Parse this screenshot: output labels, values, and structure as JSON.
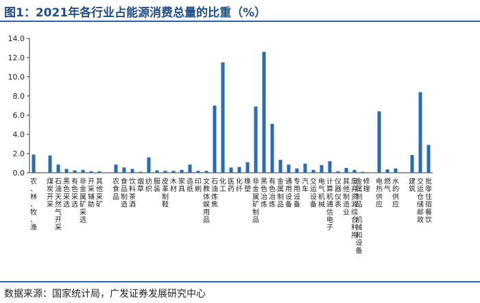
{
  "header": {
    "title": "图1：2021年各行业占能源消费总量的比重（%）"
  },
  "footer": {
    "source": "数据来源：国家统计局，广发证券发展研究中心"
  },
  "colors": {
    "bar": "#2b6cb0",
    "accent": "#2b63a8",
    "title": "#1f4e8c"
  },
  "chart_data": {
    "type": "bar",
    "title": "2021年各行业占能源消费总量的比重（%）",
    "xlabel": "",
    "ylabel": "",
    "ylim": [
      0,
      14
    ],
    "yticks": [
      "0.0",
      "2.0",
      "4.0",
      "6.0",
      "8.0",
      "10.0",
      "12.0",
      "14.0"
    ],
    "grid": false,
    "legend": "none",
    "categories": [
      "农、林、牧、渔",
      "",
      "煤炭开采",
      "石油天然气开采",
      "黑色采选",
      "有色采选",
      "非金属矿采选",
      "开采辅助",
      "其他采矿",
      "",
      "农食品",
      "食品制造",
      "饮料茶酒",
      "烟草",
      "纺织",
      "服装",
      "皮革制鞋",
      "木材",
      "家具",
      "造纸",
      "印刷",
      "文教体娱用品",
      "石油炼焦",
      "化工",
      "医药",
      "化纤",
      "橡塑",
      "非金属矿制品",
      "黑色冶炼",
      "有色冶炼",
      "金属制品",
      "通用设备",
      "专用设备",
      "汽车",
      "交运设备",
      "电气机械",
      "计算机通信电子",
      "仪器仪表",
      "其他制造业",
      "废弃资源综合利用",
      "金属制品、机械和设备修理",
      "",
      "电热供应",
      "燃气",
      "水的供应",
      "",
      "建筑",
      "交运仓储邮政",
      "批零住宿餐饮"
    ],
    "values": [
      1.9,
      null,
      1.8,
      0.85,
      0.4,
      0.25,
      0.3,
      0.15,
      0.15,
      null,
      0.85,
      0.55,
      0.4,
      0.1,
      1.6,
      0.25,
      0.2,
      0.2,
      0.3,
      0.85,
      0.2,
      0.2,
      7.0,
      11.5,
      0.55,
      0.6,
      1.1,
      6.9,
      12.6,
      5.1,
      1.35,
      0.85,
      0.45,
      0.95,
      0.3,
      0.8,
      1.2,
      0.15,
      0.5,
      0.3,
      0.1,
      null,
      6.4,
      0.35,
      0.45,
      null,
      1.85,
      8.4,
      2.9
    ]
  }
}
